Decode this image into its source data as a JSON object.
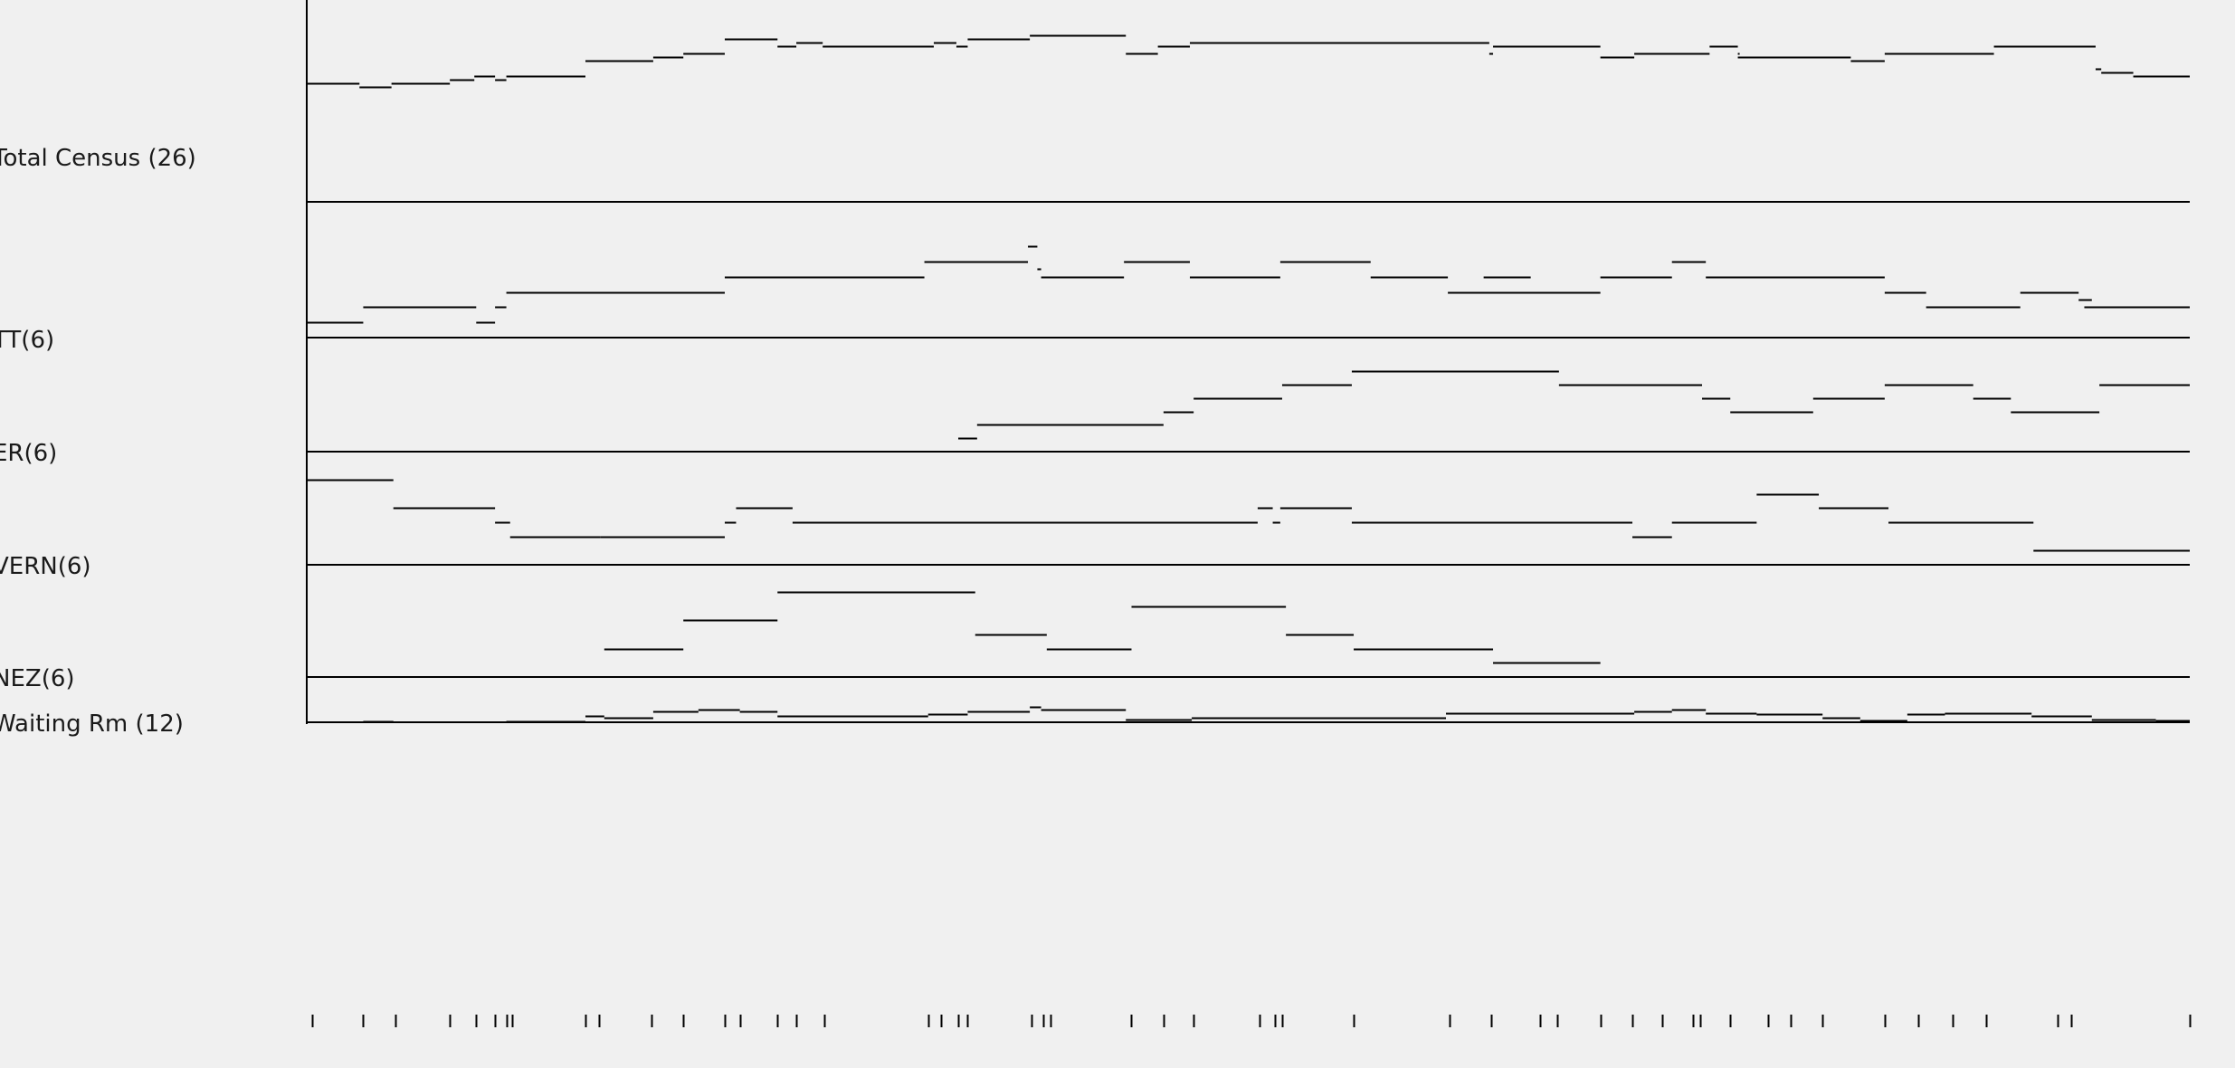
{
  "app": {
    "background": "#f0f0f0",
    "line_color": "#000000"
  },
  "chart_data": {
    "type": "line",
    "style": "step",
    "grid": false,
    "x_axis": "time (unlabeled, event tick marks only)",
    "xlim": [
      0,
      1000
    ],
    "series": [
      {
        "key": "total",
        "name": "Total Census (26)",
        "ylim": [
          0,
          26
        ],
        "segments": [
          [
            0,
            28,
            16
          ],
          [
            28,
            45,
            15.5
          ],
          [
            45,
            76,
            16
          ],
          [
            76,
            89,
            16.5
          ],
          [
            89,
            100,
            17
          ],
          [
            100,
            106,
            16.5
          ],
          [
            106,
            148,
            17
          ],
          [
            148,
            184,
            19
          ],
          [
            184,
            200,
            19.5
          ],
          [
            200,
            222,
            20
          ],
          [
            222,
            250,
            22
          ],
          [
            250,
            260,
            21
          ],
          [
            260,
            274,
            21.5
          ],
          [
            274,
            333,
            21
          ],
          [
            333,
            345,
            21.5
          ],
          [
            345,
            351,
            21
          ],
          [
            351,
            384,
            22
          ],
          [
            384,
            435,
            22.5
          ],
          [
            435,
            452,
            20
          ],
          [
            452,
            469,
            21
          ],
          [
            469,
            628,
            21.5
          ],
          [
            628,
            630,
            20
          ],
          [
            630,
            687,
            21
          ],
          [
            687,
            705,
            19.5
          ],
          [
            705,
            745,
            20
          ],
          [
            745,
            760,
            21
          ],
          [
            760,
            760.5,
            20
          ],
          [
            760,
            820,
            19.5
          ],
          [
            820,
            838,
            19
          ],
          [
            838,
            896,
            20
          ],
          [
            896,
            950,
            21
          ],
          [
            950,
            953,
            18
          ],
          [
            953,
            970,
            17.5
          ],
          [
            970,
            1000,
            17
          ]
        ]
      },
      {
        "key": "tt",
        "name": "TT(6)",
        "ylim": [
          0,
          6
        ],
        "segments": [
          [
            0,
            30,
            1
          ],
          [
            30,
            90,
            2
          ],
          [
            90,
            100,
            1
          ],
          [
            100,
            106,
            2
          ],
          [
            106,
            222,
            3
          ],
          [
            222,
            328,
            4
          ],
          [
            328,
            383,
            5
          ],
          [
            383,
            388,
            6
          ],
          [
            388,
            390,
            4.5
          ],
          [
            390,
            434,
            4
          ],
          [
            434,
            469,
            5
          ],
          [
            469,
            517,
            4
          ],
          [
            517,
            565,
            5
          ],
          [
            565,
            606,
            4
          ],
          [
            606,
            650,
            3
          ],
          [
            650,
            625,
            4
          ],
          [
            630,
            687,
            3
          ],
          [
            687,
            725,
            4
          ],
          [
            725,
            743,
            5
          ],
          [
            743,
            838,
            4
          ],
          [
            838,
            860,
            3
          ],
          [
            860,
            910,
            2
          ],
          [
            910,
            941,
            3
          ],
          [
            941,
            948,
            2.5
          ],
          [
            944,
            1000,
            2
          ]
        ]
      },
      {
        "key": "er",
        "name": "ER(6)",
        "ylim": [
          0,
          6
        ],
        "segments": [
          [
            346,
            356,
            1
          ],
          [
            356,
            455,
            2
          ],
          [
            455,
            471,
            3
          ],
          [
            471,
            518,
            4
          ],
          [
            518,
            555,
            5
          ],
          [
            555,
            665,
            6
          ],
          [
            665,
            741,
            5
          ],
          [
            741,
            756,
            4
          ],
          [
            756,
            800,
            3
          ],
          [
            800,
            838,
            4
          ],
          [
            838,
            885,
            5
          ],
          [
            885,
            905,
            4
          ],
          [
            905,
            952,
            3
          ],
          [
            952,
            1000,
            5
          ]
        ]
      },
      {
        "key": "vern",
        "name": "VERN(6)",
        "ylim": [
          0,
          6
        ],
        "segments": [
          [
            0,
            46,
            6
          ],
          [
            46,
            100,
            4
          ],
          [
            100,
            108,
            3
          ],
          [
            108,
            156,
            2
          ],
          [
            156,
            222,
            2
          ],
          [
            222,
            228,
            3
          ],
          [
            228,
            258,
            4
          ],
          [
            258,
            505,
            3
          ],
          [
            505,
            513,
            4
          ],
          [
            513,
            517,
            3
          ],
          [
            517,
            555,
            4
          ],
          [
            555,
            704,
            3
          ],
          [
            704,
            725,
            2
          ],
          [
            725,
            770,
            3
          ],
          [
            770,
            803,
            5
          ],
          [
            803,
            840,
            4
          ],
          [
            840,
            917,
            3
          ],
          [
            917,
            1000,
            1
          ]
        ]
      },
      {
        "key": "nez",
        "name": "NEZ(6)",
        "ylim": [
          0,
          6
        ],
        "segments": [
          [
            158,
            200,
            2
          ],
          [
            200,
            250,
            4
          ],
          [
            250,
            355,
            6
          ],
          [
            355,
            393,
            3
          ],
          [
            393,
            438,
            2
          ],
          [
            438,
            520,
            5
          ],
          [
            520,
            556,
            3
          ],
          [
            556,
            630,
            2
          ],
          [
            630,
            687,
            1
          ]
        ]
      },
      {
        "key": "waiting",
        "name": "Waiting Rm (12)",
        "ylim": [
          0,
          12
        ],
        "segments": [
          [
            30,
            46,
            0.3
          ],
          [
            106,
            148,
            0.3
          ],
          [
            148,
            158,
            2
          ],
          [
            158,
            184,
            1.5
          ],
          [
            184,
            208,
            3.5
          ],
          [
            208,
            230,
            4
          ],
          [
            230,
            250,
            3.5
          ],
          [
            250,
            330,
            2
          ],
          [
            330,
            351,
            2.5
          ],
          [
            351,
            384,
            3.5
          ],
          [
            384,
            390,
            5
          ],
          [
            390,
            435,
            4
          ],
          [
            435,
            470,
            1
          ],
          [
            470,
            605,
            1.5
          ],
          [
            605,
            705,
            3
          ],
          [
            705,
            725,
            3.5
          ],
          [
            725,
            743,
            4
          ],
          [
            743,
            770,
            3
          ],
          [
            770,
            805,
            2.5
          ],
          [
            805,
            825,
            1.5
          ],
          [
            825,
            850,
            0.5
          ],
          [
            850,
            870,
            2.5
          ],
          [
            870,
            916,
            3
          ],
          [
            916,
            948,
            2
          ],
          [
            948,
            982,
            0.8
          ],
          [
            982,
            1000,
            0.5
          ]
        ]
      }
    ],
    "event_ticks": [
      3,
      30,
      47,
      76,
      90,
      100,
      106,
      109,
      148,
      155,
      183,
      200,
      222,
      230,
      250,
      260,
      275,
      330,
      337,
      346,
      351,
      385,
      391,
      395,
      438,
      455,
      471,
      506,
      514,
      518,
      556,
      607,
      629,
      655,
      664,
      687,
      704,
      720,
      736,
      740,
      756,
      776,
      788,
      805,
      838,
      856,
      874,
      892,
      930,
      937,
      1000
    ]
  }
}
